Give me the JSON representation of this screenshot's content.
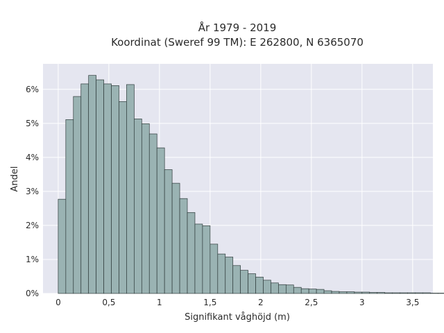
{
  "chart_data": {
    "type": "bar",
    "title_lines": [
      "År 1979 - 2019",
      "Koordinat (Sweref 99 TM): E 262800, N 6365070"
    ],
    "xlabel": "Signifikant våghöjd (m)",
    "ylabel": "Andel",
    "xlim": [
      -0.15,
      3.7
    ],
    "ylim": [
      0,
      6.75
    ],
    "x_ticks": [
      0,
      0.5,
      1,
      1.5,
      2,
      2.5,
      3,
      3.5
    ],
    "x_tick_labels": [
      "0",
      "0,5",
      "1",
      "1,5",
      "2",
      "2,5",
      "3",
      "3,5"
    ],
    "y_ticks": [
      0,
      1,
      2,
      3,
      4,
      5,
      6
    ],
    "y_tick_labels": [
      "0%",
      "1%",
      "2%",
      "3%",
      "4%",
      "5%",
      "6%"
    ],
    "bin_width": 0.075,
    "bin_start": 0,
    "values": [
      2.77,
      5.11,
      5.79,
      6.16,
      6.41,
      6.28,
      6.16,
      6.11,
      5.64,
      6.14,
      5.13,
      4.99,
      4.69,
      4.28,
      3.64,
      3.24,
      2.79,
      2.38,
      2.04,
      1.99,
      1.45,
      1.16,
      1.07,
      0.82,
      0.68,
      0.58,
      0.48,
      0.39,
      0.31,
      0.26,
      0.25,
      0.18,
      0.14,
      0.13,
      0.12,
      0.08,
      0.06,
      0.05,
      0.05,
      0.04,
      0.04,
      0.03,
      0.03,
      0.02,
      0.02,
      0.02,
      0.02,
      0.02,
      0.02,
      0.01,
      0.01,
      0.01,
      0.01,
      0.01
    ],
    "grid": true,
    "colors": {
      "plot_bg": "#e5e6f0",
      "grid": "#ffffff",
      "bar_fill": "#9ab3b3",
      "bar_stroke": "#2f3b3b",
      "text": "#2a2a2a"
    }
  }
}
